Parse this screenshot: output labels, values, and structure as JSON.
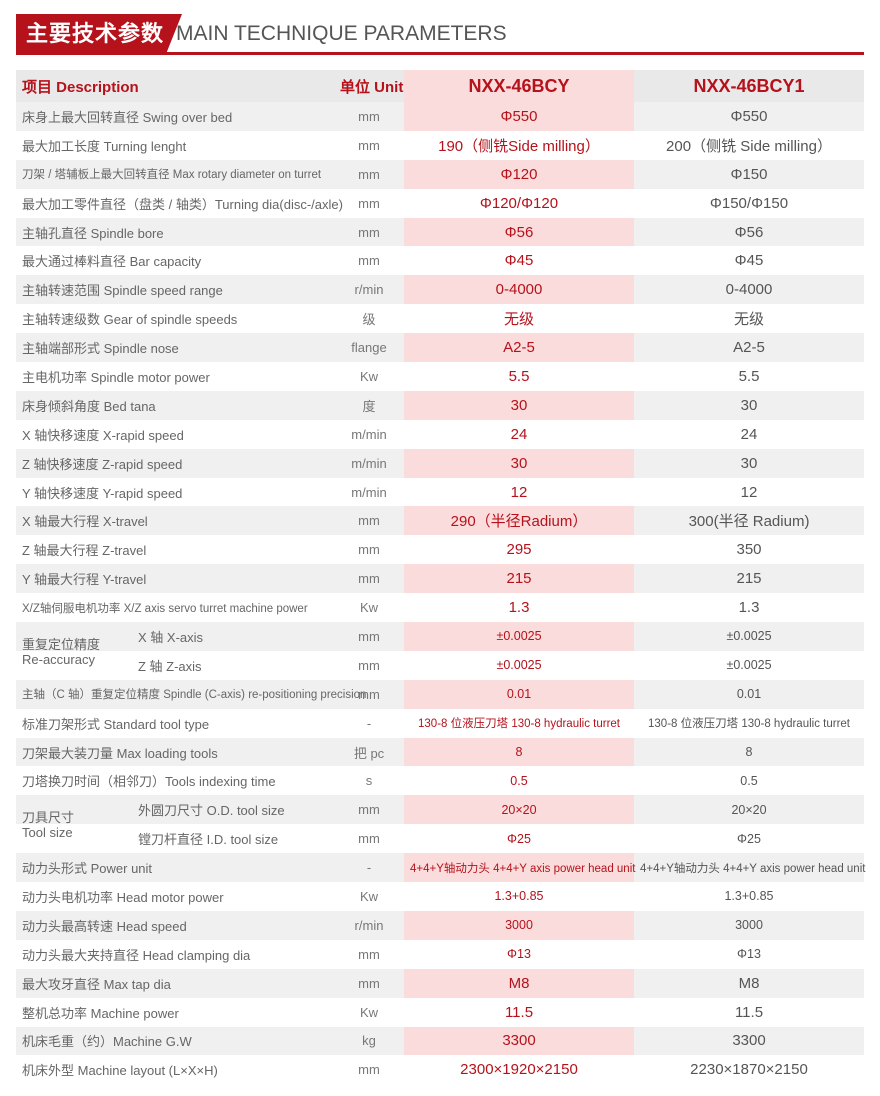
{
  "header": {
    "title_cn": "主要技术参数",
    "title_en": "MAIN TECHNIQUE PARAMETERS"
  },
  "table": {
    "head": {
      "desc": "项目 Description",
      "unit": "单位 Unit",
      "model1": "NXX-46BCY",
      "model2": "NXX-46BCY1"
    },
    "rows": [
      {
        "desc": "床身上最大回转直径 Swing over bed",
        "unit": "mm",
        "m1": "Φ550",
        "m2": "Φ550"
      },
      {
        "desc": "最大加工长度 Turning lenght",
        "unit": "mm",
        "m1": "190（侧铣Side milling）",
        "m2": "200（侧铣 Side milling）"
      },
      {
        "desc": "刀架 / 塔辅板上最大回转直径 Max rotary diameter on turret",
        "unit": "mm",
        "m1": "Φ120",
        "m2": "Φ150"
      },
      {
        "desc": "最大加工零件直径（盘类 / 轴类）Turning dia(disc-/axle)",
        "unit": "mm",
        "m1": "Φ120/Φ120",
        "m2": "Φ150/Φ150"
      },
      {
        "desc": "主轴孔直径 Spindle bore",
        "unit": "mm",
        "m1": "Φ56",
        "m2": "Φ56"
      },
      {
        "desc": "最大通过棒料直径 Bar capacity",
        "unit": "mm",
        "m1": "Φ45",
        "m2": "Φ45"
      },
      {
        "desc": "主轴转速范围 Spindle speed range",
        "unit": "r/min",
        "m1": "0-4000",
        "m2": "0-4000"
      },
      {
        "desc": "主轴转速级数 Gear of spindle speeds",
        "unit": "级",
        "m1": "无级",
        "m2": "无级"
      },
      {
        "desc": "主轴端部形式 Spindle nose",
        "unit": "flange",
        "m1": "A2-5",
        "m2": "A2-5"
      },
      {
        "desc": "主电机功率 Spindle motor power",
        "unit": "Kw",
        "m1": "5.5",
        "m2": "5.5"
      },
      {
        "desc": "床身倾斜角度 Bed tana",
        "unit": "度",
        "m1": "30",
        "m2": "30"
      },
      {
        "desc": "X 轴快移速度 X-rapid speed",
        "unit": "m/min",
        "m1": "24",
        "m2": "24"
      },
      {
        "desc": "Z 轴快移速度 Z-rapid speed",
        "unit": "m/min",
        "m1": "30",
        "m2": "30"
      },
      {
        "desc": "Y 轴快移速度 Y-rapid speed",
        "unit": "m/min",
        "m1": "12",
        "m2": "12"
      },
      {
        "desc": "X 轴最大行程 X-travel",
        "unit": "mm",
        "m1": "290（半径Radium）",
        "m2": "300(半径 Radium)"
      },
      {
        "desc": "Z 轴最大行程 Z-travel",
        "unit": "mm",
        "m1": "295",
        "m2": "350"
      },
      {
        "desc": "Y 轴最大行程 Y-travel",
        "unit": "mm",
        "m1": "215",
        "m2": "215"
      },
      {
        "desc": "X/Z轴伺服电机功率 X/Z axis servo turret machine power",
        "unit": "Kw",
        "m1": "1.3",
        "m2": "1.3"
      }
    ],
    "accuracy": {
      "group_cn": "重复定位精度",
      "group_en": "Re-accuracy",
      "rows": [
        {
          "desc": "X 轴 X-axis",
          "unit": "mm",
          "m1": "±0.0025",
          "m2": "±0.0025"
        },
        {
          "desc": "Z 轴 Z-axis",
          "unit": "mm",
          "m1": "±0.0025",
          "m2": "±0.0025"
        }
      ]
    },
    "rows2": [
      {
        "desc": "主轴（C 轴）重复定位精度 Spindle (C-axis) re-positioning precision",
        "unit": "mm",
        "m1": "0.01",
        "m2": "0.01"
      },
      {
        "desc": "标准刀架形式 Standard tool type",
        "unit": "-",
        "m1": "130-8 位液压刀塔 130-8 hydraulic turret",
        "m2": "130-8 位液压刀塔 130-8 hydraulic turret"
      },
      {
        "desc": "刀架最大装刀量 Max loading tools",
        "unit": "把 pc",
        "m1": "8",
        "m2": "8"
      },
      {
        "desc": "刀塔换刀时间（相邻刀）Tools indexing time",
        "unit": "s",
        "m1": "0.5",
        "m2": "0.5"
      }
    ],
    "toolsize": {
      "group_cn": "刀具尺寸",
      "group_en": "Tool size",
      "rows": [
        {
          "desc": "外圆刀尺寸 O.D. tool size",
          "unit": "mm",
          "m1": "20×20",
          "m2": "20×20"
        },
        {
          "desc": "镗刀杆直径 I.D. tool size",
          "unit": "mm",
          "m1": "Φ25",
          "m2": "Φ25"
        }
      ]
    },
    "rows3": [
      {
        "desc": "动力头形式 Power unit",
        "unit": "-",
        "m1": "4+4+Y轴动力头 4+4+Y axis power head unit",
        "m2": "4+4+Y轴动力头 4+4+Y axis power head unit"
      },
      {
        "desc": "动力头电机功率 Head motor power",
        "unit": "Kw",
        "m1": "1.3+0.85",
        "m2": "1.3+0.85"
      },
      {
        "desc": "动力头最高转速 Head speed",
        "unit": "r/min",
        "m1": "3000",
        "m2": "3000"
      },
      {
        "desc": "动力头最大夹持直径 Head clamping dia",
        "unit": "mm",
        "m1": "Φ13",
        "m2": "Φ13"
      },
      {
        "desc": "最大攻牙直径 Max tap dia",
        "unit": "mm",
        "m1": "M8",
        "m2": "M8"
      },
      {
        "desc": "整机总功率 Machine power",
        "unit": "Kw",
        "m1": "11.5",
        "m2": "11.5"
      },
      {
        "desc": "机床毛重（约）Machine G.W",
        "unit": "kg",
        "m1": "3300",
        "m2": "3300"
      },
      {
        "desc": "机床外型 Machine layout (L×X×H)",
        "unit": "mm",
        "m1": "2300×1920×2150",
        "m2": "2230×1870×2150"
      }
    ]
  }
}
